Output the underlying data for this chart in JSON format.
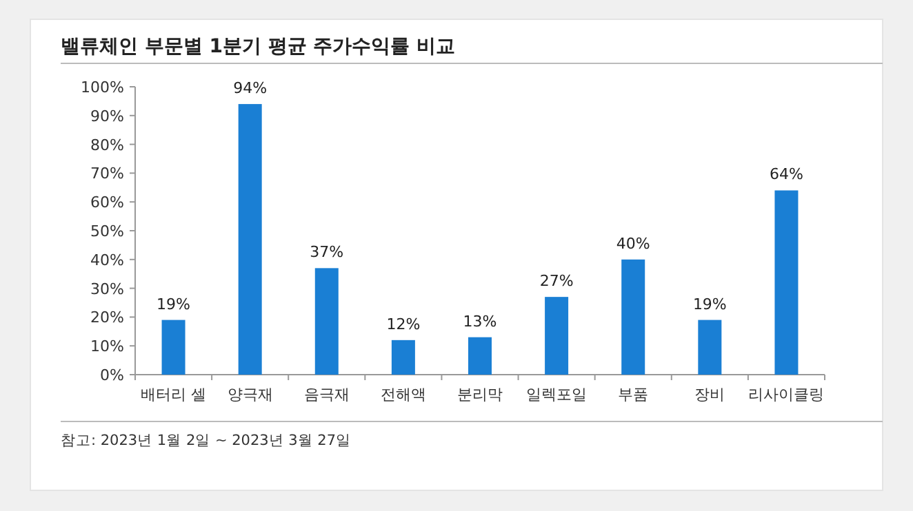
{
  "chart_data": {
    "type": "bar",
    "title": "밸류체인 부문별 1분기 평균 주가수익률 비교",
    "categories": [
      "배터리 셀",
      "양극재",
      "음극재",
      "전해액",
      "분리막",
      "일렉포일",
      "부품",
      "장비",
      "리사이클링"
    ],
    "values": [
      19,
      94,
      37,
      12,
      13,
      27,
      40,
      19,
      64
    ],
    "color": "#1a7fd4",
    "grid": false,
    "data_labels": true,
    "value_labels": [
      "19%",
      "94%",
      "37%",
      "12%",
      "13%",
      "27%",
      "40%",
      "19%",
      "64%"
    ],
    "ylim": [
      0,
      100
    ],
    "yticks": [
      {
        "value": 0,
        "label": "0%"
      },
      {
        "value": 10,
        "label": "10%"
      },
      {
        "value": 20,
        "label": "20%"
      },
      {
        "value": 30,
        "label": "30%"
      },
      {
        "value": 40,
        "label": "40%"
      },
      {
        "value": 50,
        "label": "50%"
      },
      {
        "value": 60,
        "label": "60%"
      },
      {
        "value": 70,
        "label": "70%"
      },
      {
        "value": 80,
        "label": "80%"
      },
      {
        "value": 90,
        "label": "90%"
      },
      {
        "value": 100,
        "label": "100%"
      }
    ],
    "annotations": [
      "참고: 2023년 1월 2일 ~ 2023년 3월 27일"
    ]
  }
}
